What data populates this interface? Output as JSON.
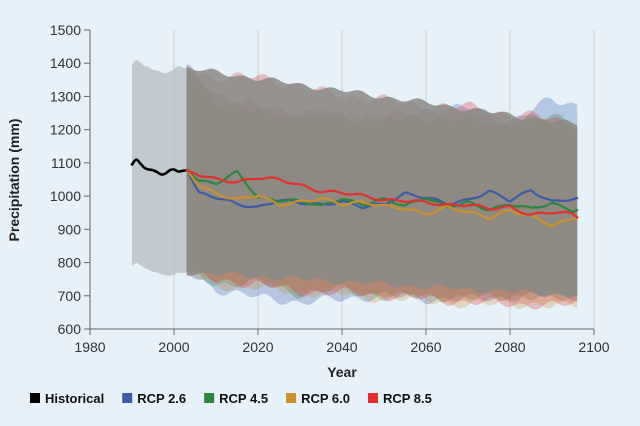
{
  "chart_data": {
    "type": "line",
    "title": "",
    "xlabel": "Year",
    "ylabel": "Precipitation (mm)",
    "xlim": [
      1980,
      2100
    ],
    "ylim": [
      600,
      1500
    ],
    "x_ticks": [
      1980,
      2000,
      2020,
      2040,
      2060,
      2080,
      2100
    ],
    "y_ticks": [
      600,
      700,
      800,
      900,
      1000,
      1100,
      1200,
      1300,
      1400,
      1500
    ],
    "grid": true,
    "legend_position": "bottom",
    "series": [
      {
        "name": "Historical",
        "color": "#000000",
        "x": [
          1990,
          1991,
          1992,
          1993,
          1994,
          1995,
          1996,
          1997,
          1998,
          1999,
          2000,
          2001,
          2002,
          2003
        ],
        "y": [
          1095,
          1110,
          1098,
          1085,
          1080,
          1078,
          1072,
          1065,
          1068,
          1078,
          1080,
          1074,
          1076,
          1078
        ],
        "band_upper": [
          1395,
          1410,
          1402,
          1392,
          1388,
          1380,
          1378,
          1372,
          1370,
          1375,
          1382,
          1392,
          1388,
          1385
        ],
        "band_lower": [
          790,
          800,
          792,
          784,
          778,
          772,
          770,
          765,
          762,
          760,
          765,
          770,
          768,
          770
        ]
      },
      {
        "name": "RCP 2.6",
        "color": "#3b5ba5",
        "x": [
          2003,
          2006,
          2010,
          2015,
          2020,
          2025,
          2030,
          2035,
          2040,
          2045,
          2050,
          2055,
          2060,
          2065,
          2070,
          2075,
          2080,
          2085,
          2090,
          2095,
          2096
        ],
        "y": [
          1078,
          1010,
          995,
          975,
          968,
          988,
          978,
          975,
          985,
          965,
          975,
          1010,
          995,
          975,
          990,
          1015,
          985,
          1018,
          985,
          990,
          990
        ]
      },
      {
        "name": "RCP 4.5",
        "color": "#2e8540",
        "x": [
          2003,
          2006,
          2010,
          2015,
          2020,
          2025,
          2030,
          2035,
          2040,
          2045,
          2050,
          2055,
          2060,
          2065,
          2070,
          2075,
          2080,
          2085,
          2090,
          2095,
          2096
        ],
        "y": [
          1078,
          1048,
          1040,
          1070,
          995,
          990,
          985,
          968,
          995,
          975,
          988,
          972,
          998,
          965,
          980,
          962,
          975,
          960,
          980,
          958,
          960
        ]
      },
      {
        "name": "RCP 6.0",
        "color": "#c8912e",
        "x": [
          2003,
          2006,
          2010,
          2015,
          2020,
          2025,
          2030,
          2035,
          2040,
          2045,
          2050,
          2055,
          2060,
          2065,
          2070,
          2075,
          2080,
          2085,
          2090,
          2095,
          2096
        ],
        "y": [
          1078,
          1030,
          1010,
          990,
          1000,
          975,
          985,
          990,
          975,
          985,
          970,
          960,
          948,
          968,
          950,
          935,
          960,
          938,
          910,
          935,
          940
        ]
      },
      {
        "name": "RCP 8.5",
        "color": "#e03030",
        "x": [
          2003,
          2006,
          2010,
          2015,
          2020,
          2025,
          2030,
          2035,
          2040,
          2045,
          2050,
          2055,
          2060,
          2065,
          2070,
          2075,
          2080,
          2085,
          2090,
          2095,
          2096
        ],
        "y": [
          1078,
          1062,
          1050,
          1045,
          1055,
          1048,
          1035,
          1015,
          1008,
          1002,
          990,
          985,
          980,
          975,
          975,
          960,
          968,
          945,
          950,
          945,
          938
        ]
      }
    ],
    "uncertainty_bands": [
      {
        "name": "RCP 2.6",
        "color": "#3b5ba5",
        "x": [
          2003,
          2010,
          2020,
          2030,
          2040,
          2050,
          2060,
          2070,
          2080,
          2090,
          2096
        ],
        "upper": [
          1385,
          1310,
          1265,
          1255,
          1240,
          1235,
          1260,
          1265,
          1225,
          1290,
          1275
        ],
        "lower": [
          770,
          720,
          695,
          680,
          690,
          700,
          690,
          690,
          695,
          700,
          700
        ]
      },
      {
        "name": "RCP 4.5",
        "color": "#2e8540",
        "x": [
          2003,
          2010,
          2020,
          2030,
          2040,
          2050,
          2060,
          2070,
          2080,
          2090,
          2096
        ],
        "upper": [
          1385,
          1290,
          1255,
          1245,
          1250,
          1230,
          1240,
          1230,
          1220,
          1240,
          1230
        ],
        "lower": [
          770,
          735,
          740,
          705,
          720,
          695,
          700,
          690,
          700,
          690,
          695
        ]
      },
      {
        "name": "RCP 6.0",
        "color": "#c8912e",
        "x": [
          2003,
          2010,
          2020,
          2030,
          2040,
          2050,
          2060,
          2070,
          2080,
          2090,
          2096
        ],
        "upper": [
          1385,
          1300,
          1260,
          1250,
          1235,
          1240,
          1245,
          1230,
          1225,
          1215,
          1215
        ],
        "lower": [
          770,
          730,
          725,
          710,
          705,
          690,
          690,
          670,
          680,
          665,
          675
        ]
      },
      {
        "name": "RCP 8.5",
        "color": "#e03030",
        "x": [
          2003,
          2010,
          2020,
          2030,
          2040,
          2050,
          2060,
          2070,
          2080,
          2090,
          2096
        ],
        "upper": [
          1385,
          1355,
          1360,
          1330,
          1300,
          1290,
          1270,
          1270,
          1245,
          1235,
          1215
        ],
        "lower": [
          770,
          745,
          735,
          710,
          710,
          700,
          690,
          680,
          675,
          670,
          675
        ]
      }
    ],
    "overlap_band": {
      "color": "#8a8a86",
      "x": [
        2003,
        2096
      ],
      "upper": [
        1385,
        1215
      ],
      "lower": [
        770,
        700
      ]
    }
  }
}
